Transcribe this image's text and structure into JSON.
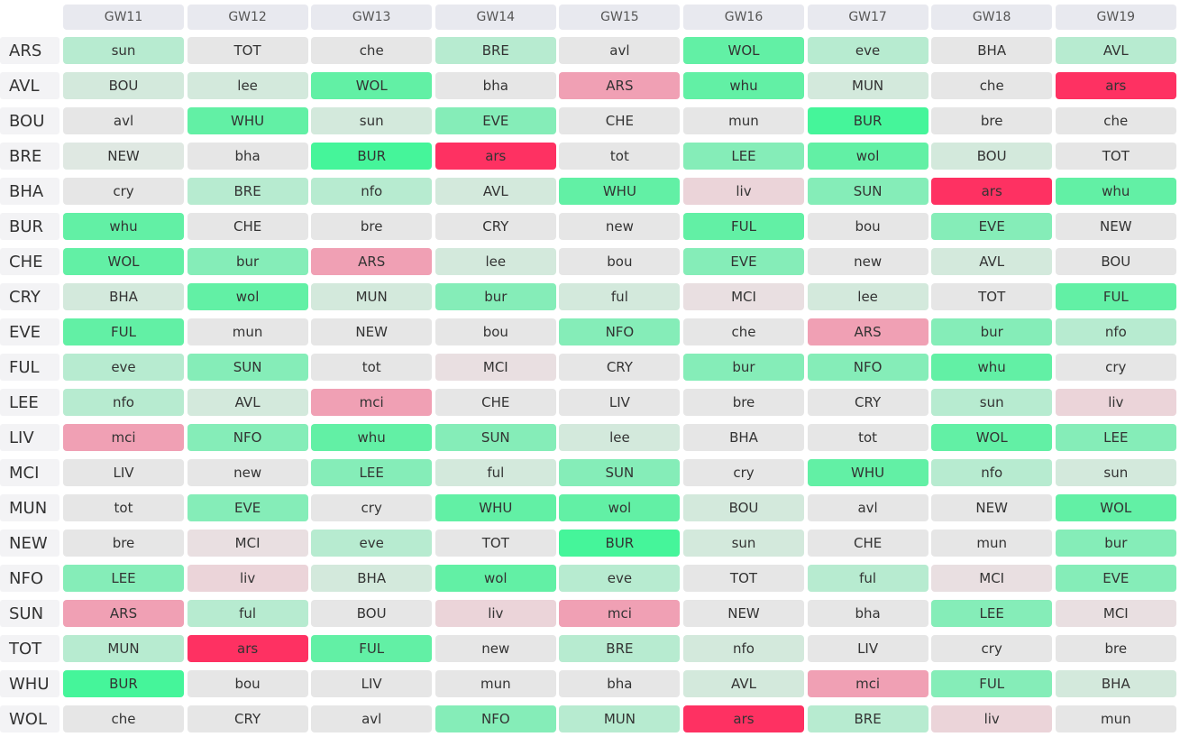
{
  "header": {
    "columns": [
      "GW11",
      "GW12",
      "GW13",
      "GW14",
      "GW15",
      "GW16",
      "GW17",
      "GW18",
      "GW19"
    ]
  },
  "rows": [
    {
      "team": "ARS",
      "fixtures": [
        "sun",
        "TOT",
        "che",
        "BRE",
        "avl",
        "WOL",
        "eve",
        "BHA",
        "AVL"
      ],
      "colors": [
        "#b7ebd0",
        "#e6e6e6",
        "#e6e6e6",
        "#b7ebd0",
        "#e6e6e6",
        "#62f0a5",
        "#b7ebd0",
        "#e6e6e6",
        "#b7ebd0"
      ]
    },
    {
      "team": "AVL",
      "fixtures": [
        "BOU",
        "lee",
        "WOL",
        "bha",
        "ARS",
        "whu",
        "MUN",
        "che",
        "ars"
      ],
      "colors": [
        "#d3e9dc",
        "#d3e9dc",
        "#62f0a5",
        "#e6e6e6",
        "#f0a0b4",
        "#62f0a5",
        "#d3e9dc",
        "#e6e6e6",
        "#fe3162"
      ]
    },
    {
      "team": "BOU",
      "fixtures": [
        "avl",
        "WHU",
        "sun",
        "EVE",
        "CHE",
        "mun",
        "BUR",
        "bre",
        "che"
      ],
      "colors": [
        "#e6e6e6",
        "#62f0a5",
        "#d3e9dc",
        "#85edb8",
        "#e6e6e6",
        "#e6e6e6",
        "#45f59a",
        "#e6e6e6",
        "#e6e6e6"
      ]
    },
    {
      "team": "BRE",
      "fixtures": [
        "NEW",
        "bha",
        "BUR",
        "ars",
        "tot",
        "LEE",
        "wol",
        "BOU",
        "TOT"
      ],
      "colors": [
        "#dfe8e2",
        "#e6e6e6",
        "#45f59a",
        "#fe3162",
        "#e6e6e6",
        "#85edb8",
        "#62f0a5",
        "#d3e9dc",
        "#e6e6e6"
      ]
    },
    {
      "team": "BHA",
      "fixtures": [
        "cry",
        "BRE",
        "nfo",
        "AVL",
        "WHU",
        "liv",
        "SUN",
        "ars",
        "whu"
      ],
      "colors": [
        "#e6e6e6",
        "#b7ebd0",
        "#b7ebd0",
        "#d3e9dc",
        "#62f0a5",
        "#ebd4d9",
        "#85edb8",
        "#fe3162",
        "#62f0a5"
      ]
    },
    {
      "team": "BUR",
      "fixtures": [
        "whu",
        "CHE",
        "bre",
        "CRY",
        "new",
        "FUL",
        "bou",
        "EVE",
        "NEW"
      ],
      "colors": [
        "#62f0a5",
        "#e6e6e6",
        "#e6e6e6",
        "#e6e6e6",
        "#e6e6e6",
        "#62f0a5",
        "#e6e6e6",
        "#85edb8",
        "#e6e6e6"
      ]
    },
    {
      "team": "CHE",
      "fixtures": [
        "WOL",
        "bur",
        "ARS",
        "lee",
        "bou",
        "EVE",
        "new",
        "AVL",
        "BOU"
      ],
      "colors": [
        "#62f0a5",
        "#85edb8",
        "#f0a0b4",
        "#d3e9dc",
        "#e6e6e6",
        "#85edb8",
        "#e6e6e6",
        "#d3e9dc",
        "#e6e6e6"
      ]
    },
    {
      "team": "CRY",
      "fixtures": [
        "BHA",
        "wol",
        "MUN",
        "bur",
        "ful",
        "MCI",
        "lee",
        "TOT",
        "FUL"
      ],
      "colors": [
        "#d3e9dc",
        "#62f0a5",
        "#d3e9dc",
        "#85edb8",
        "#d3e9dc",
        "#e9dfe1",
        "#d3e9dc",
        "#e6e6e6",
        "#62f0a5"
      ]
    },
    {
      "team": "EVE",
      "fixtures": [
        "FUL",
        "mun",
        "NEW",
        "bou",
        "NFO",
        "che",
        "ARS",
        "bur",
        "nfo"
      ],
      "colors": [
        "#62f0a5",
        "#e6e6e6",
        "#e6e6e6",
        "#e6e6e6",
        "#85edb8",
        "#e6e6e6",
        "#f0a0b4",
        "#85edb8",
        "#b7ebd0"
      ]
    },
    {
      "team": "FUL",
      "fixtures": [
        "eve",
        "SUN",
        "tot",
        "MCI",
        "CRY",
        "bur",
        "NFO",
        "whu",
        "cry"
      ],
      "colors": [
        "#b7ebd0",
        "#85edb8",
        "#e6e6e6",
        "#e9dfe1",
        "#e6e6e6",
        "#85edb8",
        "#85edb8",
        "#62f0a5",
        "#e6e6e6"
      ]
    },
    {
      "team": "LEE",
      "fixtures": [
        "nfo",
        "AVL",
        "mci",
        "CHE",
        "LIV",
        "bre",
        "CRY",
        "sun",
        "liv"
      ],
      "colors": [
        "#b7ebd0",
        "#d3e9dc",
        "#f0a0b4",
        "#e6e6e6",
        "#e6e6e6",
        "#e6e6e6",
        "#e6e6e6",
        "#b7ebd0",
        "#ebd4d9"
      ]
    },
    {
      "team": "LIV",
      "fixtures": [
        "mci",
        "NFO",
        "whu",
        "SUN",
        "lee",
        "BHA",
        "tot",
        "WOL",
        "LEE"
      ],
      "colors": [
        "#f0a0b4",
        "#85edb8",
        "#62f0a5",
        "#85edb8",
        "#d3e9dc",
        "#e6e6e6",
        "#e6e6e6",
        "#62f0a5",
        "#85edb8"
      ]
    },
    {
      "team": "MCI",
      "fixtures": [
        "LIV",
        "new",
        "LEE",
        "ful",
        "SUN",
        "cry",
        "WHU",
        "nfo",
        "sun"
      ],
      "colors": [
        "#e6e6e6",
        "#e6e6e6",
        "#85edb8",
        "#d3e9dc",
        "#85edb8",
        "#e6e6e6",
        "#62f0a5",
        "#b7ebd0",
        "#d3e9dc"
      ]
    },
    {
      "team": "MUN",
      "fixtures": [
        "tot",
        "EVE",
        "cry",
        "WHU",
        "wol",
        "BOU",
        "avl",
        "NEW",
        "WOL"
      ],
      "colors": [
        "#e6e6e6",
        "#85edb8",
        "#e6e6e6",
        "#62f0a5",
        "#62f0a5",
        "#d3e9dc",
        "#e6e6e6",
        "#e6e6e6",
        "#62f0a5"
      ]
    },
    {
      "team": "NEW",
      "fixtures": [
        "bre",
        "MCI",
        "eve",
        "TOT",
        "BUR",
        "sun",
        "CHE",
        "mun",
        "bur"
      ],
      "colors": [
        "#e6e6e6",
        "#e9dfe1",
        "#b7ebd0",
        "#e6e6e6",
        "#45f59a",
        "#d3e9dc",
        "#e6e6e6",
        "#e6e6e6",
        "#85edb8"
      ]
    },
    {
      "team": "NFO",
      "fixtures": [
        "LEE",
        "liv",
        "BHA",
        "wol",
        "eve",
        "TOT",
        "ful",
        "MCI",
        "EVE"
      ],
      "colors": [
        "#85edb8",
        "#ebd4d9",
        "#d3e9dc",
        "#62f0a5",
        "#b7ebd0",
        "#e6e6e6",
        "#b7ebd0",
        "#e9dfe1",
        "#85edb8"
      ]
    },
    {
      "team": "SUN",
      "fixtures": [
        "ARS",
        "ful",
        "BOU",
        "liv",
        "mci",
        "NEW",
        "bha",
        "LEE",
        "MCI"
      ],
      "colors": [
        "#f0a0b4",
        "#b7ebd0",
        "#e6e6e6",
        "#ebd4d9",
        "#f0a0b4",
        "#e6e6e6",
        "#e6e6e6",
        "#85edb8",
        "#e9dfe1"
      ]
    },
    {
      "team": "TOT",
      "fixtures": [
        "MUN",
        "ars",
        "FUL",
        "new",
        "BRE",
        "nfo",
        "LIV",
        "cry",
        "bre"
      ],
      "colors": [
        "#b7ebd0",
        "#fe3162",
        "#62f0a5",
        "#e6e6e6",
        "#b7ebd0",
        "#d3e9dc",
        "#e6e6e6",
        "#e6e6e6",
        "#e6e6e6"
      ]
    },
    {
      "team": "WHU",
      "fixtures": [
        "BUR",
        "bou",
        "LIV",
        "mun",
        "bha",
        "AVL",
        "mci",
        "FUL",
        "BHA"
      ],
      "colors": [
        "#45f59a",
        "#e6e6e6",
        "#e6e6e6",
        "#e6e6e6",
        "#e6e6e6",
        "#d3e9dc",
        "#f0a0b4",
        "#85edb8",
        "#d3e9dc"
      ]
    },
    {
      "team": "WOL",
      "fixtures": [
        "che",
        "CRY",
        "avl",
        "NFO",
        "MUN",
        "ars",
        "BRE",
        "liv",
        "mun"
      ],
      "colors": [
        "#e6e6e6",
        "#e6e6e6",
        "#e6e6e6",
        "#85edb8",
        "#b7ebd0",
        "#fe3162",
        "#b7ebd0",
        "#ebd4d9",
        "#e6e6e6"
      ]
    }
  ]
}
